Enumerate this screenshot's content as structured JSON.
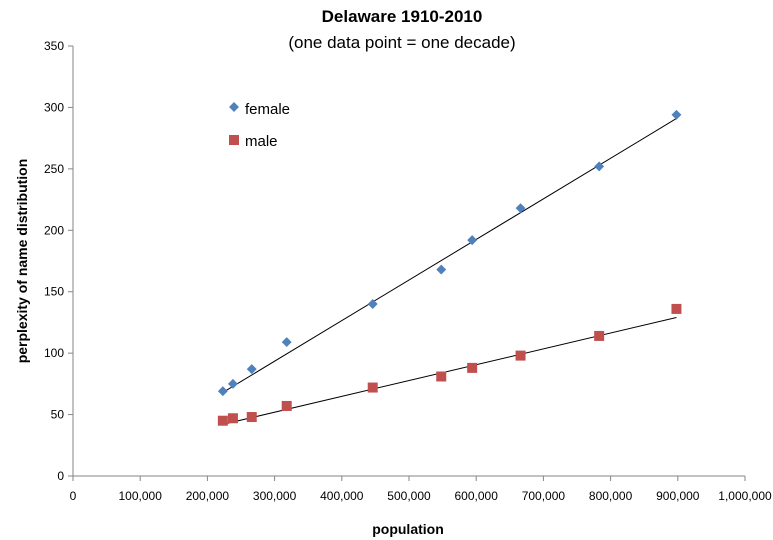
{
  "chart_data": {
    "type": "scatter",
    "title": "Delaware 1910-2010",
    "subtitle": "(one data point = one decade)",
    "xlabel": "population",
    "ylabel": "perplexity of name distribution",
    "xlim": [
      0,
      1000000
    ],
    "ylim": [
      0,
      350
    ],
    "x_ticks": [
      0,
      100000,
      200000,
      300000,
      400000,
      500000,
      600000,
      700000,
      800000,
      900000,
      1000000
    ],
    "x_tick_labels": [
      "0",
      "100,000",
      "200,000",
      "300,000",
      "400,000",
      "500,000",
      "600,000",
      "700,000",
      "800,000",
      "900,000",
      "1,000,000"
    ],
    "y_ticks": [
      0,
      50,
      100,
      150,
      200,
      250,
      300,
      350
    ],
    "y_tick_labels": [
      "0",
      "50",
      "100",
      "150",
      "200",
      "250",
      "300",
      "350"
    ],
    "grid": false,
    "legend_position": "top-left",
    "series": [
      {
        "name": "female",
        "marker": "diamond",
        "color": "#4F81BD",
        "x": [
          223000,
          238000,
          266000,
          318000,
          446000,
          548000,
          594000,
          666000,
          783000,
          898000
        ],
        "y": [
          69,
          75,
          87,
          109,
          140,
          168,
          192,
          218,
          252,
          294
        ],
        "trendline": {
          "x": [
            223000,
            898000
          ],
          "y": [
            68,
            291
          ]
        }
      },
      {
        "name": "male",
        "marker": "square",
        "color": "#C0504D",
        "x": [
          223000,
          238000,
          266000,
          318000,
          446000,
          548000,
          594000,
          666000,
          783000,
          898000
        ],
        "y": [
          45,
          47,
          48,
          57,
          72,
          81,
          88,
          98,
          114,
          136
        ],
        "trendline": {
          "x": [
            223000,
            898000
          ],
          "y": [
            42,
            129
          ]
        }
      }
    ]
  }
}
